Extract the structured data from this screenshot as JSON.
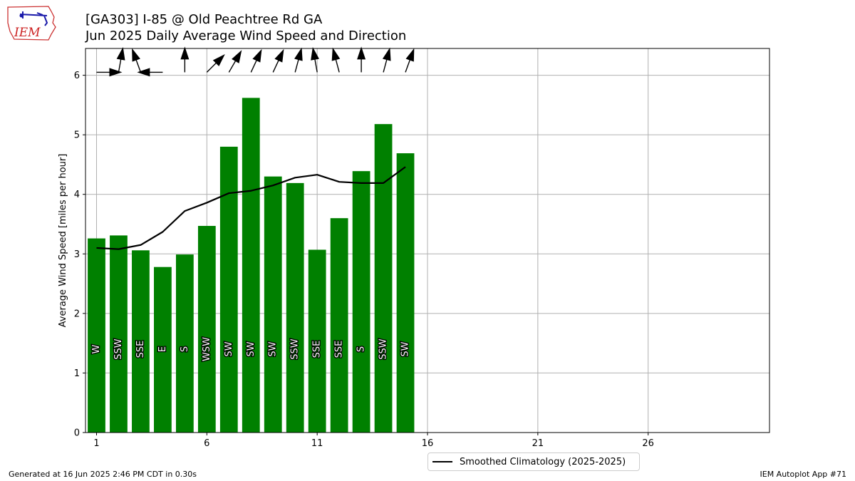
{
  "title_line1": "[GA303] I-85 @ Old Peachtree Rd  GA",
  "title_line2": "Jun 2025 Daily Average Wind Speed and Direction",
  "logo_text": "IEM",
  "footer_left": "Generated at 16 Jun 2025 2:46 PM CDT in 0.30s",
  "footer_right": "IEM Autoplot App #71",
  "colors": {
    "bar": "#008000",
    "climatology": "#000000",
    "grid": "#b0b0b0",
    "logo": "#cc2222"
  },
  "chart_data": {
    "type": "bar",
    "ylabel": "Average Wind Speed [miles per hour]",
    "xlim": [
      0.5,
      31.5
    ],
    "ylim": [
      0,
      6.45
    ],
    "xticks": [
      1,
      6,
      11,
      16,
      21,
      26
    ],
    "yticks": [
      0,
      1,
      2,
      3,
      4,
      5,
      6
    ],
    "grid": true,
    "legend_placement": "bottom-center",
    "days": [
      1,
      2,
      3,
      4,
      5,
      6,
      7,
      8,
      9,
      10,
      11,
      12,
      13,
      14,
      15
    ],
    "values": [
      3.26,
      3.31,
      3.06,
      2.78,
      2.99,
      3.47,
      4.8,
      5.62,
      4.3,
      4.19,
      3.07,
      3.6,
      4.39,
      5.18,
      4.69
    ],
    "directions": [
      "W",
      "SSW",
      "SSE",
      "E",
      "S",
      "WSW",
      "SW",
      "SW",
      "SW",
      "SSW",
      "SSE",
      "SSE",
      "S",
      "SSW",
      "SW"
    ],
    "arrow_angles_deg": [
      90,
      10,
      340,
      270,
      0,
      45,
      30,
      25,
      25,
      15,
      350,
      345,
      0,
      15,
      20
    ],
    "series": [
      {
        "name": "Smoothed Climatology (2025-2025)",
        "type": "line",
        "x": [
          1,
          2,
          3,
          4,
          5,
          6,
          7,
          8,
          9,
          10,
          11,
          12,
          13,
          14,
          15
        ],
        "values": [
          3.1,
          3.08,
          3.15,
          3.37,
          3.72,
          3.86,
          4.02,
          4.06,
          4.15,
          4.28,
          4.33,
          4.21,
          4.19,
          4.19,
          4.46
        ]
      }
    ]
  }
}
